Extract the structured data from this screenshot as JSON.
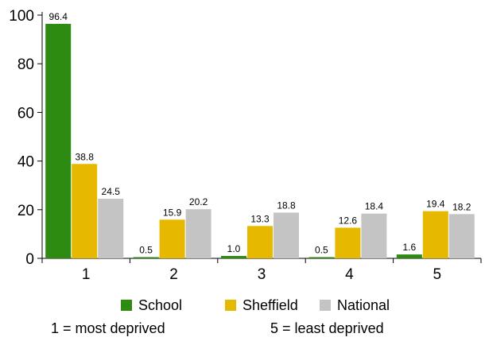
{
  "chart_data": {
    "type": "bar",
    "categories": [
      "1",
      "2",
      "3",
      "4",
      "5"
    ],
    "series": [
      {
        "name": "School",
        "values": [
          96.4,
          0.5,
          1.0,
          0.5,
          1.6
        ],
        "labels": [
          "96.4",
          "0.5",
          "1.0",
          "0.5",
          "1.6"
        ],
        "color": "#2e8b12"
      },
      {
        "name": "Sheffield",
        "values": [
          38.8,
          15.9,
          13.3,
          12.6,
          19.4
        ],
        "labels": [
          "38.8",
          "15.9",
          "13.3",
          "12.6",
          "19.4"
        ],
        "color": "#e6b800"
      },
      {
        "name": "National",
        "values": [
          24.5,
          20.2,
          18.8,
          18.4,
          18.2
        ],
        "labels": [
          "24.5",
          "20.2",
          "18.8",
          "18.4",
          "18.2"
        ],
        "color": "#c4c4c4"
      }
    ],
    "yticks": [
      0,
      20,
      40,
      60,
      80,
      100
    ],
    "ylim": [
      0,
      100
    ],
    "grid": false,
    "legend": "bottom"
  },
  "legend": {
    "items": [
      {
        "label": "School",
        "color": "#2e8b12"
      },
      {
        "label": "Sheffield",
        "color": "#e6b800"
      },
      {
        "label": "National",
        "color": "#c4c4c4"
      }
    ]
  },
  "footnotes": {
    "left": "1 = most deprived",
    "right": "5 = least deprived"
  }
}
